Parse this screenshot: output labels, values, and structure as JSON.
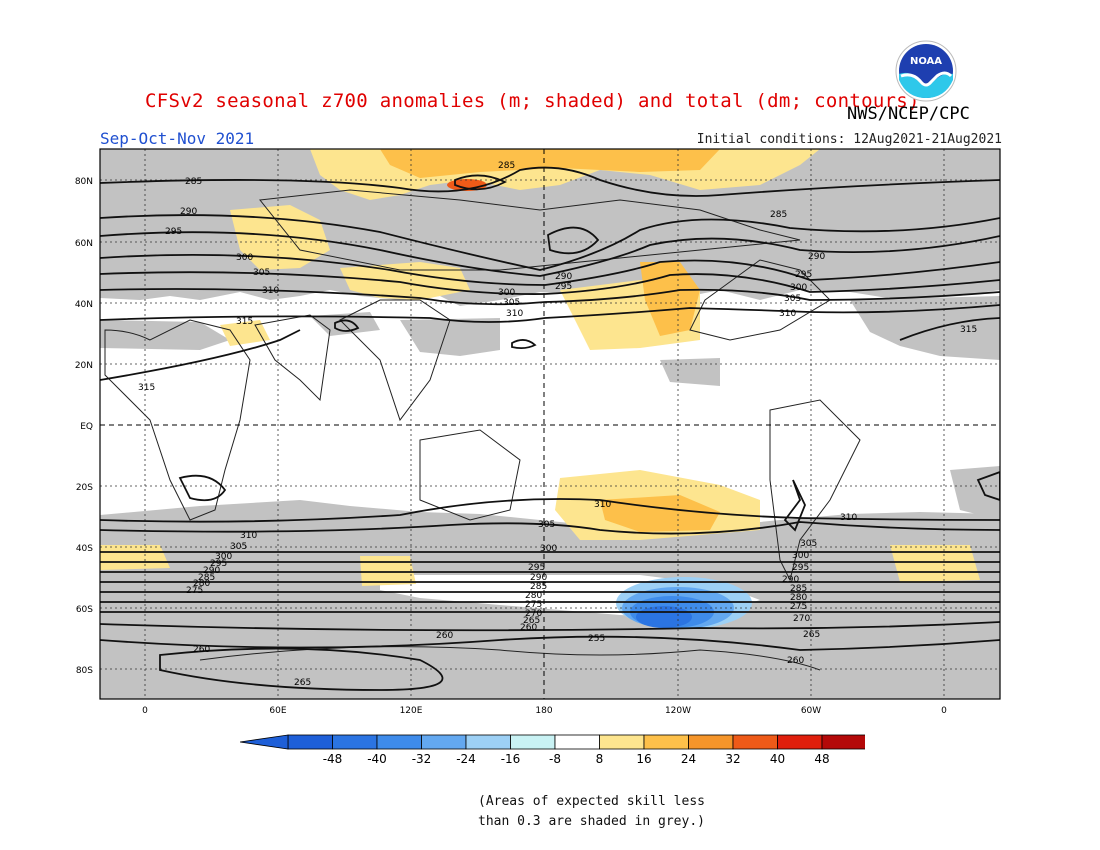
{
  "header": {
    "title": "CFSv2 seasonal z700 anomalies (m; shaded) and total (dm; contours)",
    "agency": "NWS/NCEP/CPC",
    "season": "Sep-Oct-Nov 2021",
    "initial_conditions": "Initial conditions: 12Aug2021-21Aug2021",
    "logo_text": "NOAA"
  },
  "map": {
    "lat_labels": [
      "80N",
      "60N",
      "40N",
      "20N",
      "EQ",
      "20S",
      "40S",
      "60S",
      "80S"
    ],
    "lon_labels": [
      "0",
      "60E",
      "120E",
      "180",
      "120W",
      "60W",
      "0"
    ],
    "contour_labels_nh": [
      "285",
      "290",
      "295",
      "300",
      "305",
      "310",
      "315"
    ],
    "contour_labels_sh": [
      "310",
      "305",
      "300",
      "295",
      "290",
      "285",
      "280",
      "275",
      "270",
      "265",
      "260",
      "255"
    ]
  },
  "colorbar": {
    "ticks": [
      "-48",
      "-40",
      "-32",
      "-24",
      "-16",
      "-8",
      "8",
      "16",
      "24",
      "32",
      "40",
      "48"
    ],
    "colors": [
      "#1e5fd8",
      "#2b74e2",
      "#3e8bea",
      "#63a8f0",
      "#9dd0f5",
      "#c9f2f4",
      "#ffffff",
      "#fde58f",
      "#fdc04a",
      "#f5952a",
      "#ee5a18",
      "#e01f0c",
      "#b40909"
    ],
    "underflow_color": "#1e5fd8",
    "overflow_color": "#b40909"
  },
  "note": {
    "line1": "(Areas of expected skill less",
    "line2": "than 0.3 are shaded in grey.)"
  }
}
